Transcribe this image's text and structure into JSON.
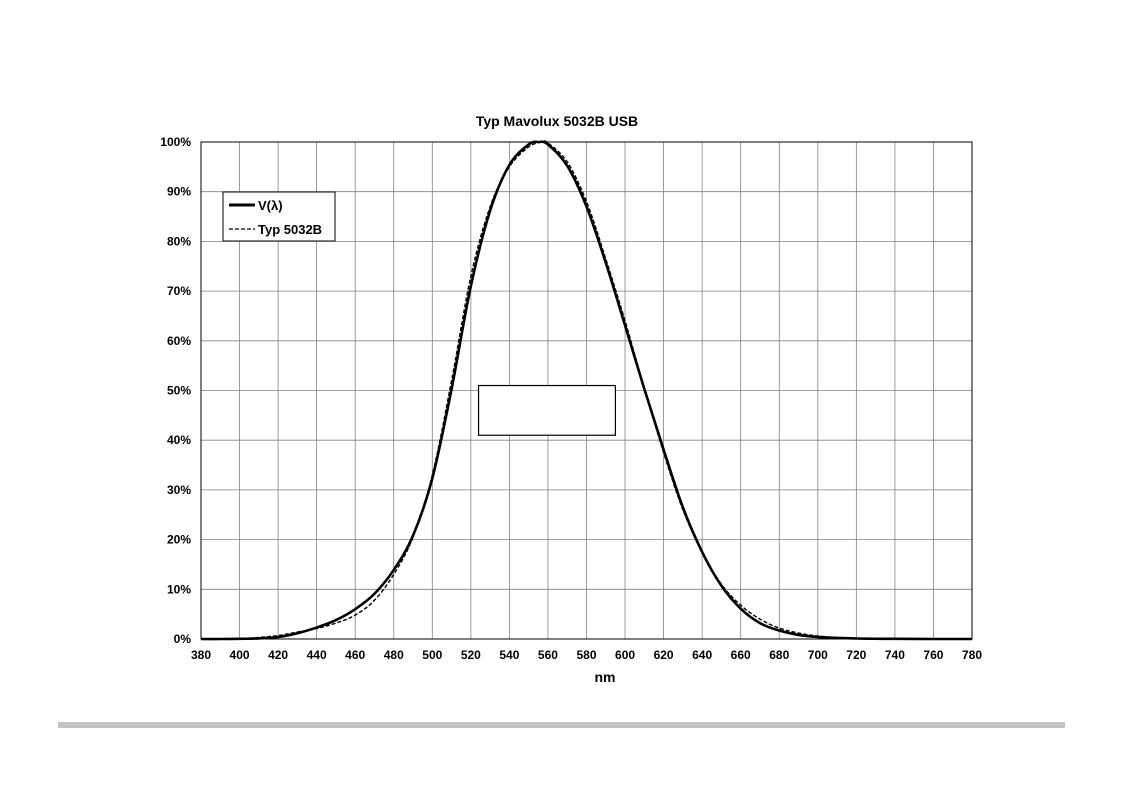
{
  "chart_data": {
    "type": "line",
    "title": "Typ Mavolux 5032B USB",
    "xlabel": "nm",
    "ylabel": "",
    "xlim": [
      380,
      780
    ],
    "ylim": [
      0,
      100
    ],
    "x_ticks": [
      "380",
      "400",
      "420",
      "440",
      "460",
      "480",
      "500",
      "520",
      "540",
      "560",
      "580",
      "600",
      "620",
      "640",
      "660",
      "680",
      "700",
      "720",
      "740",
      "760",
      "780"
    ],
    "y_ticks": [
      "0%",
      "10%",
      "20%",
      "30%",
      "40%",
      "50%",
      "60%",
      "70%",
      "80%",
      "90%",
      "100%"
    ],
    "grid": true,
    "legend_position": "top-left",
    "series": [
      {
        "name": "V(λ)",
        "style": "solid",
        "color": "#000000",
        "x": [
          380,
          390,
          400,
          410,
          420,
          430,
          440,
          450,
          460,
          470,
          480,
          490,
          500,
          510,
          520,
          530,
          540,
          550,
          555,
          560,
          570,
          580,
          590,
          600,
          610,
          620,
          630,
          640,
          650,
          660,
          670,
          680,
          690,
          700,
          710,
          720,
          730,
          740,
          760,
          780
        ],
        "y": [
          0.0,
          0.0,
          0.04,
          0.12,
          0.4,
          1.16,
          2.3,
          3.8,
          6.0,
          9.1,
          13.9,
          20.8,
          32.3,
          50.3,
          71.0,
          86.2,
          95.4,
          99.5,
          100,
          99.5,
          95.2,
          87.0,
          75.7,
          63.1,
          50.3,
          38.1,
          26.5,
          17.5,
          10.7,
          6.1,
          3.2,
          1.7,
          0.82,
          0.41,
          0.21,
          0.1,
          0.05,
          0.03,
          0.0,
          0.0
        ]
      },
      {
        "name": "Typ 5032B",
        "style": "dashed",
        "color": "#000000",
        "x": [
          380,
          400,
          410,
          420,
          430,
          440,
          450,
          460,
          470,
          480,
          490,
          500,
          510,
          520,
          530,
          540,
          550,
          557,
          560,
          570,
          580,
          590,
          600,
          610,
          620,
          630,
          640,
          650,
          660,
          670,
          680,
          690,
          700,
          710,
          720,
          740,
          760,
          780
        ],
        "y": [
          0.0,
          0.1,
          0.3,
          0.7,
          1.4,
          2.1,
          3.2,
          4.8,
          7.8,
          13.0,
          20.5,
          33.0,
          52.0,
          73.0,
          87.0,
          95.0,
          99.0,
          100,
          99.8,
          96.0,
          88.0,
          76.5,
          64.0,
          50.5,
          37.5,
          26.0,
          17.5,
          11.0,
          6.8,
          4.0,
          2.2,
          1.2,
          0.6,
          0.3,
          0.15,
          0.05,
          0.0,
          0.0
        ]
      }
    ],
    "annotation_box": {
      "x_range": [
        524,
        595
      ],
      "y_range": [
        41,
        51
      ]
    }
  }
}
